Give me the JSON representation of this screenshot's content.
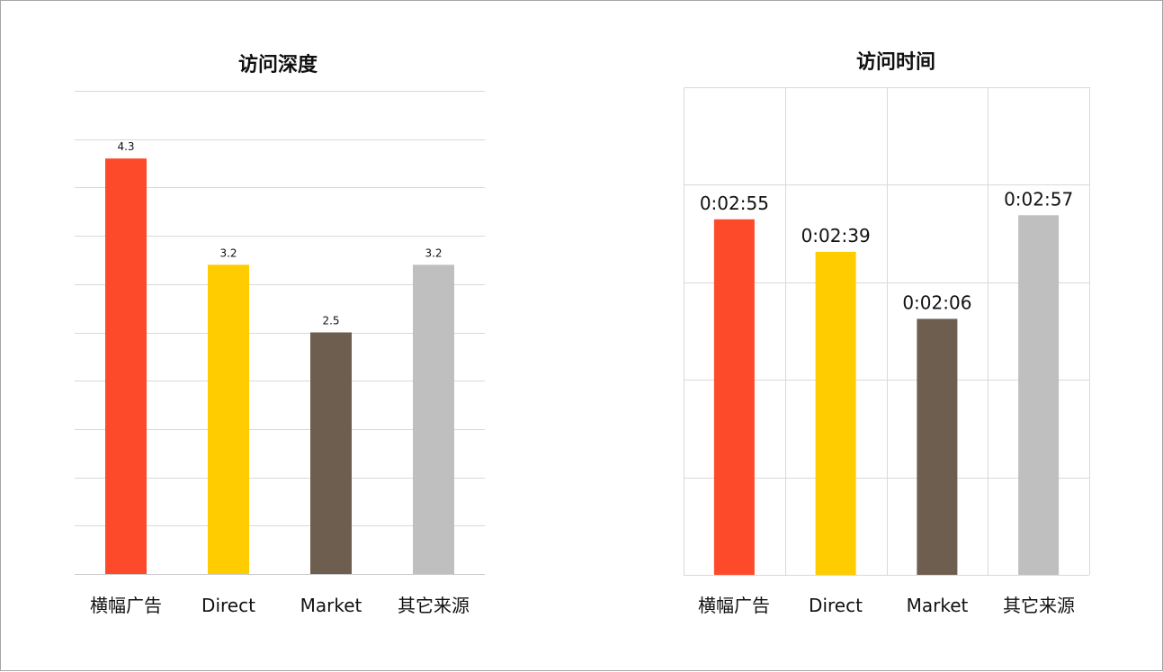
{
  "chart_data": [
    {
      "type": "bar",
      "title": "访问深度",
      "categories": [
        "横幅广告",
        "Direct",
        "Market",
        "其它来源"
      ],
      "values": [
        4.3,
        3.2,
        2.5,
        3.2
      ],
      "value_labels": [
        "4.3",
        "3.2",
        "2.5",
        "3.2"
      ],
      "colors": [
        "#fc4a2a",
        "#ffcc00",
        "#6e5e4f",
        "#bfbfbf"
      ],
      "ylim": [
        0,
        5
      ],
      "grid": "horizontal",
      "legend": "none"
    },
    {
      "type": "bar",
      "title": "访问时间",
      "categories": [
        "横幅广告",
        "Direct",
        "Market",
        "其它来源"
      ],
      "values": [
        175,
        159,
        126,
        177
      ],
      "value_labels": [
        "0:02:55",
        "0:02:39",
        "0:02:06",
        "0:02:57"
      ],
      "value_unit": "seconds",
      "colors": [
        "#fc4a2a",
        "#ffcc00",
        "#6e5e4f",
        "#bfbfbf"
      ],
      "ylim": [
        0,
        240
      ],
      "grid": "both",
      "legend": "none"
    }
  ]
}
